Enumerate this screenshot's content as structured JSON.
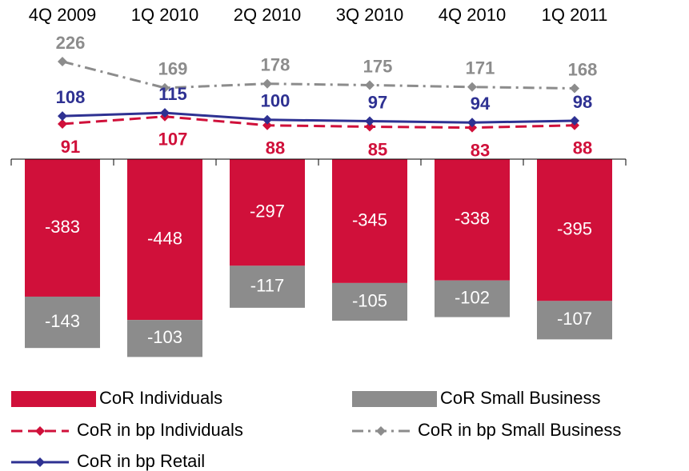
{
  "chart_data": {
    "type": "bar",
    "categories": [
      "4Q 2009",
      "1Q 2010",
      "2Q 2010",
      "3Q 2010",
      "4Q 2010",
      "1Q 2011"
    ],
    "series": [
      {
        "name": "CoR Individuals",
        "type": "bar",
        "color": "#d0103a",
        "values": [
          -383,
          -448,
          -297,
          -345,
          -338,
          -395
        ]
      },
      {
        "name": "CoR Small Business",
        "type": "bar",
        "color": "#8c8c8c",
        "values": [
          -143,
          -103,
          -117,
          -105,
          -102,
          -107
        ]
      },
      {
        "name": "CoR in bp Individuals",
        "type": "line",
        "axis": "y2",
        "dash": "dashed",
        "color": "#d0103a",
        "values": [
          91,
          107,
          88,
          85,
          83,
          88
        ]
      },
      {
        "name": "CoR in bp Small Business",
        "type": "line",
        "axis": "y2",
        "dash": "dashdot",
        "color": "#8c8c8c",
        "values": [
          226,
          169,
          178,
          175,
          171,
          168
        ]
      },
      {
        "name": "CoR in bp Retail",
        "type": "line",
        "axis": "y2",
        "dash": "solid",
        "color": "#2e3192",
        "values": [
          108,
          115,
          100,
          97,
          94,
          98
        ]
      }
    ],
    "ylim": [
      -600,
      0
    ],
    "y2lim": [
      0,
      300
    ]
  }
}
